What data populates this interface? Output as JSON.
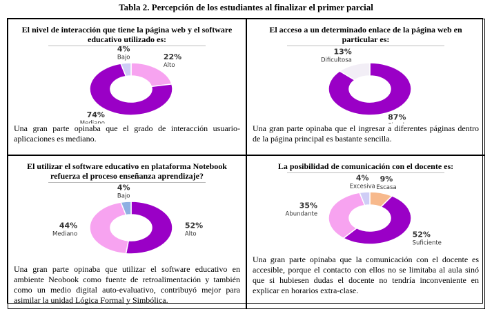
{
  "title": "Tabla 2. Percepción de los estudiantes al finalizar el primer parcial",
  "cells": [
    {
      "heading": "El nivel de interacción que tiene la página web y el software educativo utilizado es:",
      "chart": {
        "type": "donut",
        "categories": [
          "Alto",
          "Mediano",
          "Bajo"
        ],
        "values": [
          22,
          74,
          4
        ],
        "value_labels": [
          "22%",
          "74%",
          "4%"
        ],
        "colors": [
          "#f7a3f0",
          "#9a00c6",
          "#cfcdf6"
        ]
      },
      "text": "Una gran parte opinaba que el grado de interacción usuario-aplicaciones es mediano."
    },
    {
      "heading": "El acceso a un determinado enlace de la página web en particular es:",
      "chart": {
        "type": "donut",
        "categories": [
          "Simple",
          "Dificultosa"
        ],
        "values": [
          87,
          13
        ],
        "value_labels": [
          "87%",
          "13%"
        ],
        "colors": [
          "#9a00c6",
          "#f2eef6"
        ]
      },
      "text": "Una gran parte opinaba que el ingresar a diferentes páginas dentro de la página principal es bastante sencilla."
    },
    {
      "heading": "El utilizar el software educativo en plataforma Notebook refuerza el proceso enseñanza aprendizaje?",
      "chart": {
        "type": "donut",
        "categories": [
          "Alto",
          "Mediano",
          "Bajo"
        ],
        "values": [
          52,
          44,
          4
        ],
        "value_labels": [
          "52%",
          "44%",
          "4%"
        ],
        "colors": [
          "#9a00c6",
          "#f7a3f0",
          "#8fb0e2"
        ]
      },
      "text": "Una gran parte opinaba que utilizar el software educativo en ambiente Neobook como fuente de retroalimentación y también como un medio digital auto-evaluativo, contribuyó mejor para asimilar la unidad Lógica Formal y Simbólica."
    },
    {
      "heading": "La posibilidad de comunicación con el docente es:",
      "chart": {
        "type": "donut",
        "categories": [
          "Escasa",
          "Suficiente",
          "Abundante",
          "Excesiva"
        ],
        "values": [
          9,
          52,
          35,
          4
        ],
        "value_labels": [
          "9%",
          "52%",
          "35%",
          "4%"
        ],
        "colors": [
          "#f7b98c",
          "#9a00c6",
          "#f7a3f0",
          "#cfcdf6"
        ]
      },
      "text": "Una gran parte opinaba que la comunicación con el docente es accesible, porque el contacto con ellos no se limitaba al aula sinó que si hubiesen dudas el docente no tendría inconveniente en explicar en horarios extra-clase."
    }
  ]
}
